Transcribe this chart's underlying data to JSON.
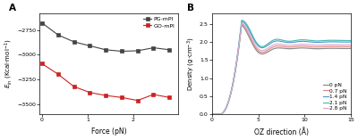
{
  "panel_A": {
    "xlabel": "Force (pN)",
    "xlim": [
      -0.05,
      3.0
    ],
    "ylim": [
      -3600,
      -2580
    ],
    "yticks": [
      -3500,
      -3250,
      -3000,
      -2750
    ],
    "xticks": [
      0,
      1,
      2
    ],
    "PG_x": [
      0,
      0.35,
      0.7,
      1.05,
      1.4,
      1.75,
      2.1,
      2.45,
      2.8
    ],
    "PG_y": [
      -2680,
      -2800,
      -2870,
      -2910,
      -2950,
      -2965,
      -2960,
      -2930,
      -2950
    ],
    "GO_x": [
      0,
      0.35,
      0.7,
      1.05,
      1.4,
      1.75,
      2.1,
      2.45,
      2.8
    ],
    "GO_y": [
      -3090,
      -3195,
      -3320,
      -3380,
      -3410,
      -3430,
      -3460,
      -3400,
      -3430
    ],
    "PG_color": "#444444",
    "GO_color": "#cc2222",
    "legend_PG": "PG-mPI",
    "legend_GO": "GO-mPI"
  },
  "panel_B": {
    "xlabel": "OZ direction (Å)",
    "xlim": [
      0,
      15
    ],
    "ylim": [
      0,
      2.8
    ],
    "yticks": [
      0.0,
      0.5,
      1.0,
      1.5,
      2.0,
      2.5
    ],
    "xticks": [
      0,
      5,
      10,
      15
    ],
    "legend_labels": [
      "0 pN",
      "0.7 pN",
      "1.4 pN",
      "2.1 pN",
      "2.8 pN"
    ],
    "colors": [
      "#888888",
      "#e08888",
      "#5599cc",
      "#44bbbb",
      "#ddaacc"
    ]
  }
}
